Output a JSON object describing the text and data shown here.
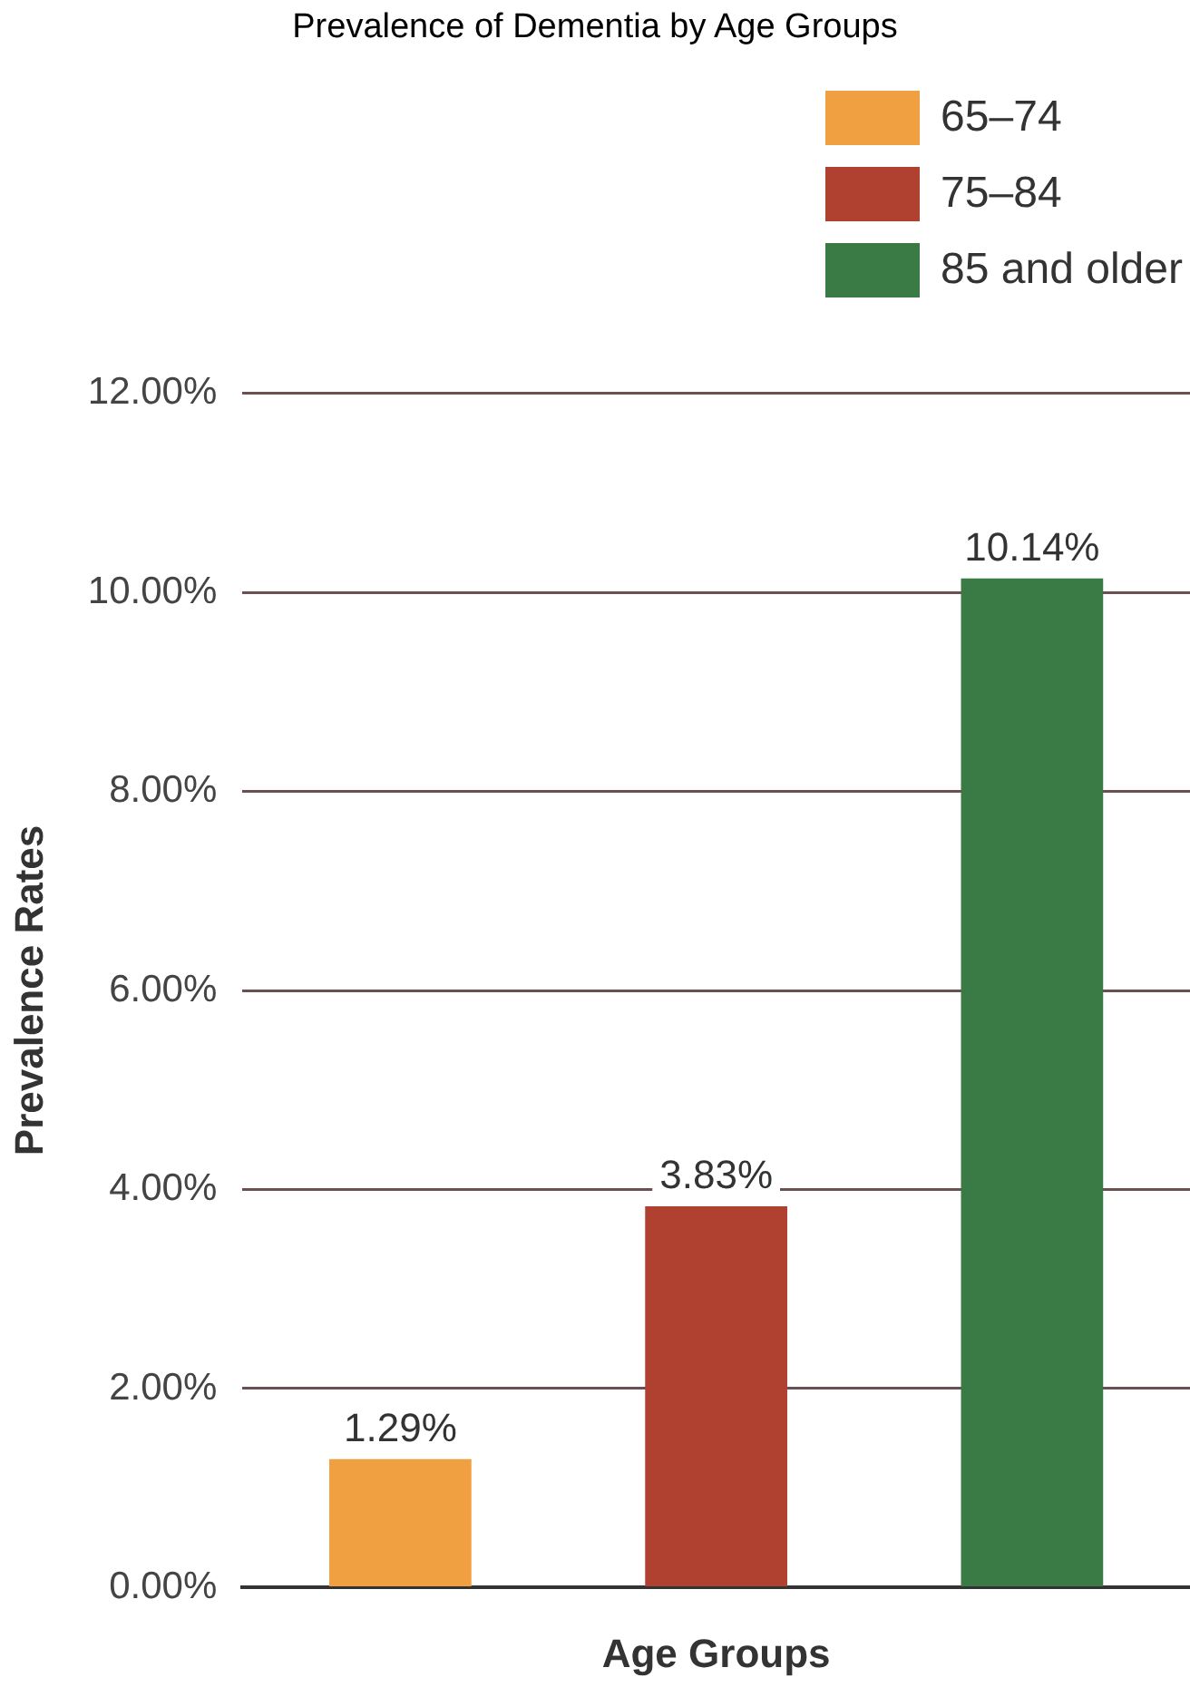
{
  "chart_data": {
    "type": "bar",
    "title": "Prevalence of Dementia by Age Groups",
    "xlabel": "Age Groups",
    "ylabel": "Prevalence Rates",
    "categories": [
      null,
      null,
      null
    ],
    "series": [
      {
        "name": "65–74",
        "color": "#f0a040",
        "values": [
          1.29,
          null,
          null
        ],
        "value_labels": [
          "1.29%",
          null,
          null
        ]
      },
      {
        "name": "75–84",
        "color": "#b04030",
        "values": [
          null,
          3.83,
          null
        ],
        "value_labels": [
          null,
          "3.83%",
          null
        ]
      },
      {
        "name": "85 and older",
        "color": "#3a7a45",
        "values": [
          null,
          null,
          10.14
        ],
        "value_labels": [
          null,
          null,
          "10.14%"
        ]
      }
    ],
    "ylim": [
      0,
      12
    ],
    "yticks": [
      {
        "value": 0,
        "label": "0.00%"
      },
      {
        "value": 2,
        "label": "2.00%"
      },
      {
        "value": 4,
        "label": "4.00%"
      },
      {
        "value": 6,
        "label": "6.00%"
      },
      {
        "value": 8,
        "label": "8.00%"
      },
      {
        "value": 10,
        "label": "10.00%"
      },
      {
        "value": 12,
        "label": "12.00%"
      }
    ],
    "grid": "y",
    "legend": "top right"
  }
}
